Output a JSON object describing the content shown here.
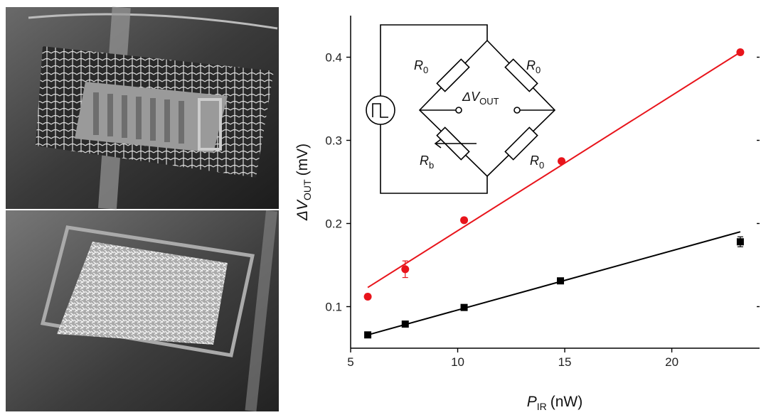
{
  "chart_data": {
    "type": "scatter",
    "x_label": {
      "symbol": "P",
      "sub": "IR",
      "unit": "(nW)"
    },
    "y_label": {
      "symbol": "ΔV",
      "sub": "OUT",
      "unit": "(mV)"
    },
    "xlim": [
      5,
      24.1
    ],
    "ylim": [
      0.05,
      0.45
    ],
    "xticks": [
      5,
      10,
      15,
      20
    ],
    "yticks": [
      0.1,
      0.2,
      0.3,
      0.4
    ],
    "series": [
      {
        "color": "#e8141b",
        "marker": "circle",
        "x": [
          5.8,
          7.55,
          10.3,
          14.85,
          23.2
        ],
        "values": [
          0.112,
          0.145,
          0.204,
          0.275,
          0.406
        ],
        "errors": [
          0.003,
          0.01,
          0.003,
          0.003,
          0.003
        ]
      },
      {
        "color": "#000000",
        "marker": "square",
        "x": [
          5.8,
          7.55,
          10.3,
          14.8,
          23.2
        ],
        "values": [
          0.066,
          0.079,
          0.099,
          0.131,
          0.178
        ],
        "errors": [
          0.002,
          0.002,
          0.002,
          0.002,
          0.006
        ]
      }
    ],
    "fits": [
      {
        "color": "#e8141b",
        "x": [
          5.8,
          23.2
        ],
        "values": [
          0.123,
          0.406
        ]
      },
      {
        "color": "#000000",
        "x": [
          5.8,
          23.2
        ],
        "values": [
          0.066,
          0.19
        ]
      }
    ]
  },
  "inset": {
    "labels": [
      {
        "main": "R",
        "sub": "0"
      },
      {
        "main": "R",
        "sub": "0"
      },
      {
        "main": "ΔV",
        "sub": "OUT"
      },
      {
        "main": "R",
        "sub": "b"
      },
      {
        "main": "R",
        "sub": "0"
      }
    ]
  }
}
